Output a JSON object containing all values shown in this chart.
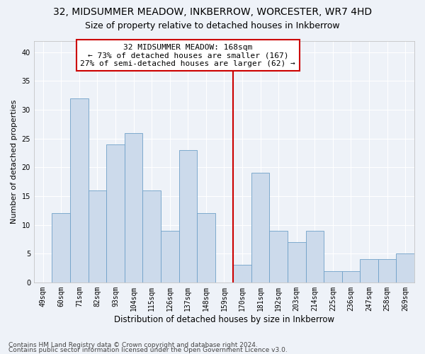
{
  "title1": "32, MIDSUMMER MEADOW, INKBERROW, WORCESTER, WR7 4HD",
  "title2": "Size of property relative to detached houses in Inkberrow",
  "xlabel": "Distribution of detached houses by size in Inkberrow",
  "ylabel": "Number of detached properties",
  "categories": [
    "49sqm",
    "60sqm",
    "71sqm",
    "82sqm",
    "93sqm",
    "104sqm",
    "115sqm",
    "126sqm",
    "137sqm",
    "148sqm",
    "159sqm",
    "170sqm",
    "181sqm",
    "192sqm",
    "203sqm",
    "214sqm",
    "225sqm",
    "236sqm",
    "247sqm",
    "258sqm",
    "269sqm"
  ],
  "values": [
    0,
    12,
    32,
    16,
    24,
    26,
    16,
    9,
    23,
    12,
    0,
    3,
    19,
    9,
    7,
    9,
    2,
    2,
    4,
    4,
    5
  ],
  "bar_color": "#ccdaeb",
  "bar_edgecolor": "#6fa0c8",
  "highlight_index": 11,
  "annotation_text": "32 MIDSUMMER MEADOW: 168sqm\n← 73% of detached houses are smaller (167)\n27% of semi-detached houses are larger (62) →",
  "annotation_box_color": "#ffffff",
  "annotation_box_edgecolor": "#cc0000",
  "vline_color": "#cc0000",
  "ylim": [
    0,
    42
  ],
  "yticks": [
    0,
    5,
    10,
    15,
    20,
    25,
    30,
    35,
    40
  ],
  "background_color": "#eef2f8",
  "grid_color": "#ffffff",
  "footer1": "Contains HM Land Registry data © Crown copyright and database right 2024.",
  "footer2": "Contains public sector information licensed under the Open Government Licence v3.0.",
  "title1_fontsize": 10,
  "title2_fontsize": 9,
  "xlabel_fontsize": 8.5,
  "ylabel_fontsize": 8,
  "tick_fontsize": 7,
  "footer_fontsize": 6.5,
  "annot_fontsize": 8
}
